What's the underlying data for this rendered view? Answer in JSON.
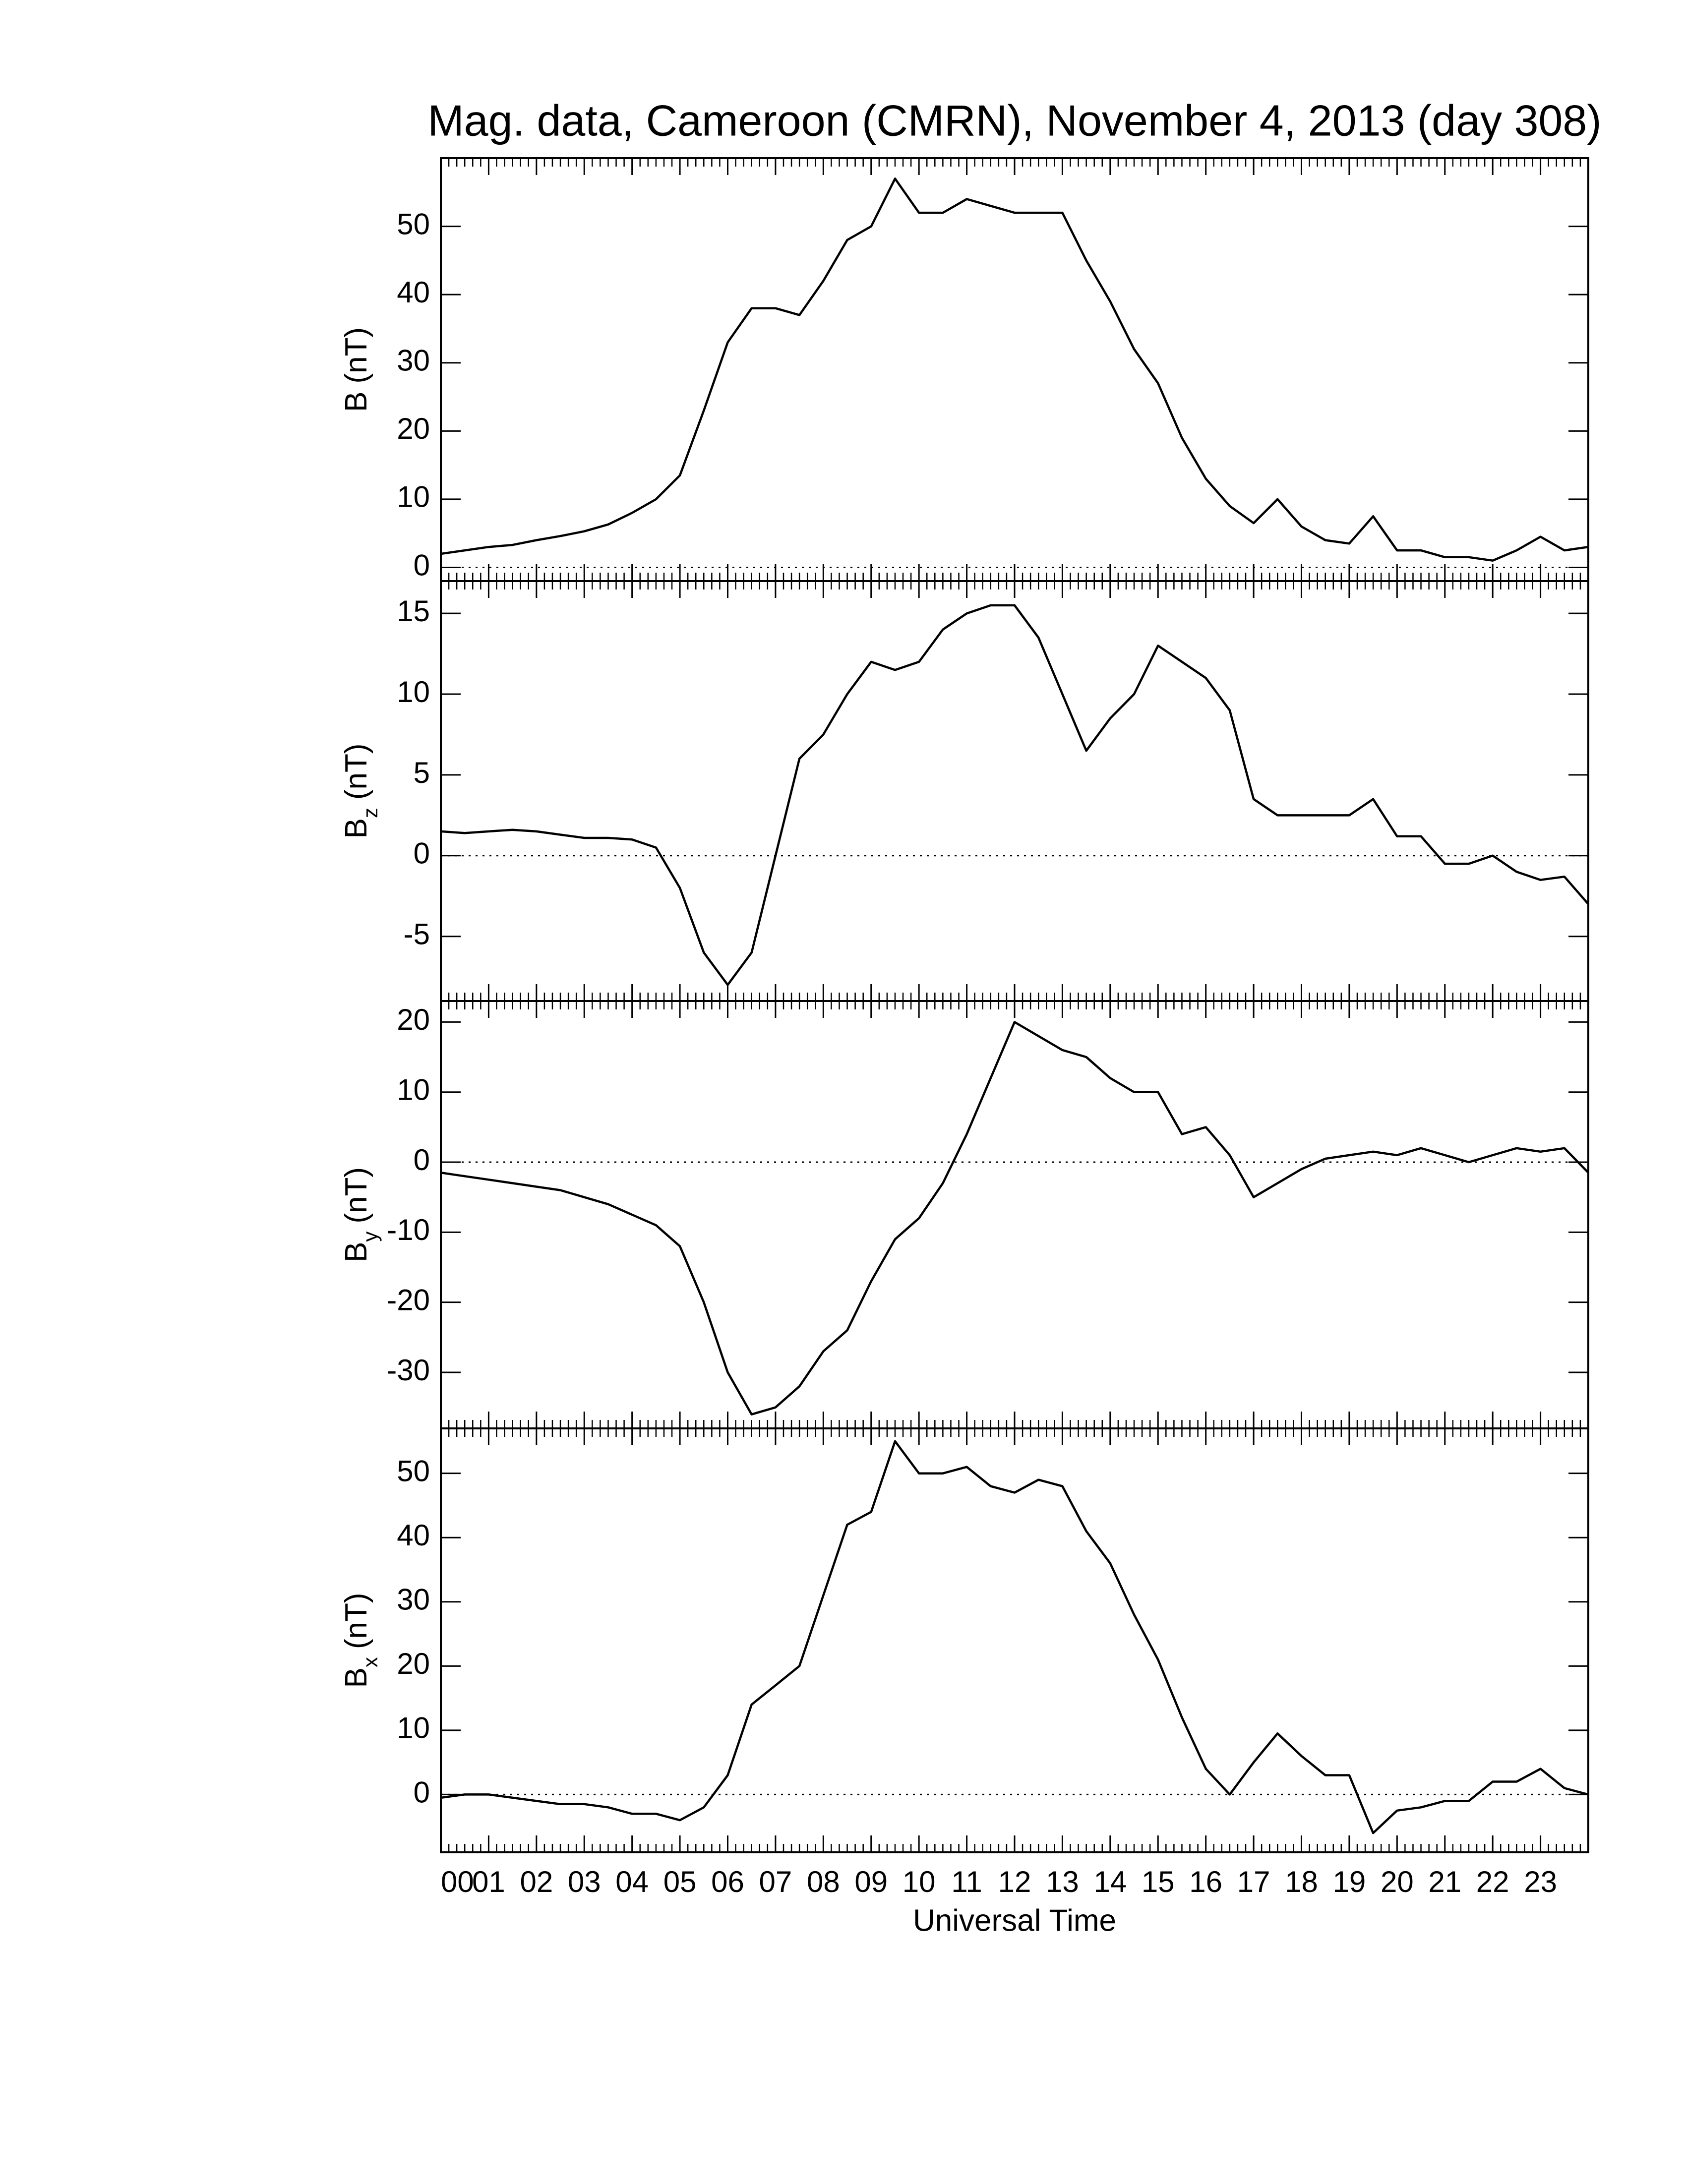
{
  "chart_data": [
    {
      "type": "line",
      "title": "Mag. data, Cameroon (CMRN), November 4, 2013 (day 308)",
      "ylabel": {
        "symbol": "B",
        "unit": "(nT)"
      },
      "x": [
        0,
        0.5,
        1,
        1.5,
        2,
        2.5,
        3,
        3.5,
        4,
        4.5,
        5,
        5.5,
        6,
        6.5,
        7,
        7.5,
        8,
        8.5,
        9,
        9.5,
        10,
        10.5,
        11,
        11.5,
        12,
        12.5,
        13,
        13.5,
        14,
        14.5,
        15,
        15.5,
        16,
        16.5,
        17,
        17.5,
        18,
        18.5,
        19,
        19.5,
        20,
        20.5,
        21,
        21.5,
        22,
        22.5,
        23,
        23.5,
        24
      ],
      "series": [
        {
          "color": "#000000",
          "values": [
            2,
            2.5,
            3,
            3.3,
            4,
            4.6,
            5.3,
            6.3,
            8,
            10,
            13.5,
            23,
            33,
            38,
            38,
            37,
            42,
            48,
            50,
            57,
            52,
            52,
            54,
            53,
            52,
            52,
            52,
            45,
            39,
            32,
            27,
            19,
            13,
            9,
            6.5,
            10,
            6,
            4,
            3.5,
            7.5,
            2.5,
            2.5,
            1.5,
            1.5,
            1,
            2.5,
            4.5,
            2.5,
            3
          ]
        }
      ],
      "xlim": [
        0,
        24
      ],
      "ylim": [
        -2,
        60
      ],
      "yticks": [
        0,
        10,
        20,
        30,
        40,
        50
      ],
      "zero_line": true
    },
    {
      "type": "line",
      "ylabel": {
        "symbol": "B",
        "subscript": "z",
        "unit": "(nT)"
      },
      "x": [
        0,
        0.5,
        1,
        1.5,
        2,
        2.5,
        3,
        3.5,
        4,
        4.5,
        5,
        5.5,
        6,
        6.5,
        7,
        7.5,
        8,
        8.5,
        9,
        9.5,
        10,
        10.5,
        11,
        11.5,
        12,
        12.5,
        13,
        13.5,
        14,
        14.5,
        15,
        15.5,
        16,
        16.5,
        17,
        17.5,
        18,
        18.5,
        19,
        19.5,
        20,
        20.5,
        21,
        21.5,
        22,
        22.5,
        23,
        23.5,
        24
      ],
      "series": [
        {
          "color": "#000000",
          "values": [
            1.5,
            1.4,
            1.5,
            1.6,
            1.5,
            1.3,
            1.1,
            1.1,
            1,
            0.5,
            -2,
            -6,
            -8,
            -6,
            0,
            6,
            7.5,
            10,
            12,
            11.5,
            12,
            14,
            15,
            15.5,
            15.5,
            13.5,
            10,
            6.5,
            8.5,
            10,
            13,
            12,
            11,
            9,
            3.5,
            2.5,
            2.5,
            2.5,
            2.5,
            3.5,
            1.2,
            1.2,
            -0.5,
            -0.5,
            0,
            -1,
            -1.5,
            -1.3,
            -3
          ]
        }
      ],
      "xlim": [
        0,
        24
      ],
      "ylim": [
        -9,
        17
      ],
      "yticks": [
        -5,
        0,
        5,
        10,
        15
      ],
      "zero_line": true
    },
    {
      "type": "line",
      "ylabel": {
        "symbol": "B",
        "subscript": "y",
        "unit": "(nT)"
      },
      "x": [
        0,
        0.5,
        1,
        1.5,
        2,
        2.5,
        3,
        3.5,
        4,
        4.5,
        5,
        5.5,
        6,
        6.5,
        7,
        7.5,
        8,
        8.5,
        9,
        9.5,
        10,
        10.5,
        11,
        11.5,
        12,
        12.5,
        13,
        13.5,
        14,
        14.5,
        15,
        15.5,
        16,
        16.5,
        17,
        17.5,
        18,
        18.5,
        19,
        19.5,
        20,
        20.5,
        21,
        21.5,
        22,
        22.5,
        23,
        23.5,
        24
      ],
      "series": [
        {
          "color": "#000000",
          "values": [
            -1.5,
            -2,
            -2.5,
            -3,
            -3.5,
            -4,
            -5,
            -6,
            -7.5,
            -9,
            -12,
            -20,
            -30,
            -36,
            -35,
            -32,
            -27,
            -24,
            -17,
            -11,
            -8,
            -3,
            4,
            12,
            20,
            18,
            16,
            15,
            12,
            10,
            10,
            4,
            5,
            1,
            -5,
            -3,
            -1,
            0.5,
            1,
            1.5,
            1,
            2,
            1,
            0,
            1,
            2,
            1.5,
            2,
            -1.5
          ]
        }
      ],
      "xlim": [
        0,
        24
      ],
      "ylim": [
        -38,
        23
      ],
      "yticks": [
        -30,
        -20,
        -10,
        0,
        10,
        20
      ],
      "zero_line": true
    },
    {
      "type": "line",
      "xlabel": "Universal Time",
      "ylabel": {
        "symbol": "B",
        "subscript": "x",
        "unit": "(nT)"
      },
      "x": [
        0,
        0.5,
        1,
        1.5,
        2,
        2.5,
        3,
        3.5,
        4,
        4.5,
        5,
        5.5,
        6,
        6.5,
        7,
        7.5,
        8,
        8.5,
        9,
        9.5,
        10,
        10.5,
        11,
        11.5,
        12,
        12.5,
        13,
        13.5,
        14,
        14.5,
        15,
        15.5,
        16,
        16.5,
        17,
        17.5,
        18,
        18.5,
        19,
        19.5,
        20,
        20.5,
        21,
        21.5,
        22,
        22.5,
        23,
        23.5,
        24
      ],
      "series": [
        {
          "color": "#000000",
          "values": [
            -0.5,
            0,
            0,
            -0.5,
            -1,
            -1.5,
            -1.5,
            -2,
            -3,
            -3,
            -4,
            -2,
            3,
            14,
            17,
            20,
            31,
            42,
            44,
            55,
            50,
            50,
            51,
            48,
            47,
            49,
            48,
            41,
            36,
            28,
            21,
            12,
            4,
            0,
            5,
            9.5,
            6,
            3,
            3,
            -6,
            -2.5,
            -2,
            -1,
            -1,
            2,
            2,
            4,
            1,
            0
          ]
        }
      ],
      "xlim": [
        0,
        24
      ],
      "ylim": [
        -9,
        57
      ],
      "yticks": [
        0,
        10,
        20,
        30,
        40,
        50
      ],
      "zero_line": true,
      "xticks": [
        {
          "value": 0,
          "label": "00"
        },
        {
          "value": 1,
          "label": "01"
        },
        {
          "value": 2,
          "label": "02"
        },
        {
          "value": 3,
          "label": "03"
        },
        {
          "value": 4,
          "label": "04"
        },
        {
          "value": 5,
          "label": "05"
        },
        {
          "value": 6,
          "label": "06"
        },
        {
          "value": 7,
          "label": "07"
        },
        {
          "value": 8,
          "label": "08"
        },
        {
          "value": 9,
          "label": "09"
        },
        10,
        11,
        12,
        13,
        14,
        15,
        16,
        17,
        18,
        19,
        20,
        21,
        22,
        23
      ],
      "xminor": 6
    }
  ]
}
